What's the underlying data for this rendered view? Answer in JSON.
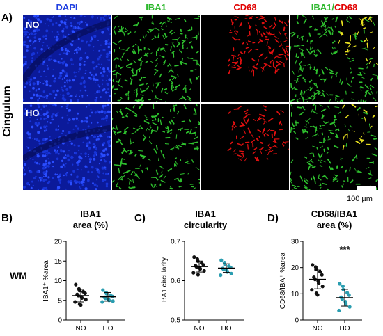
{
  "figure": {
    "panel_a": {
      "letter": "A)",
      "side_label": "Cingulum",
      "columns": [
        {
          "label": "DAPI",
          "color": "#1f3fe0"
        },
        {
          "label": "IBA1",
          "color": "#2db82d"
        },
        {
          "label": "CD68",
          "color": "#e00000"
        },
        {
          "label_part1": "IBA1",
          "label_sep": "/",
          "label_part2": "CD68",
          "color1": "#2db82d",
          "color2": "#e00000"
        }
      ],
      "rows": [
        {
          "label": "NO"
        },
        {
          "label": "HO"
        }
      ],
      "scale_bar": "100 µm"
    },
    "row_label_wm": "WM"
  },
  "chart_data": [
    {
      "type": "scatter",
      "letter": "B)",
      "title_line1": "IBA1",
      "title_line2": "area (%)",
      "ylabel": "IBA1⁺ %area",
      "categories": [
        "NO",
        "HO"
      ],
      "ylim": [
        0,
        20
      ],
      "yticks": [
        0,
        5,
        10,
        15,
        20
      ],
      "series": [
        {
          "group": "NO",
          "color": "#111111",
          "mean": 6.2,
          "sd": 1.6,
          "values": [
            9.0,
            7.9,
            7.5,
            7.2,
            6.8,
            6.5,
            6.2,
            5.9,
            5.6,
            5.2,
            4.6,
            4.0,
            3.8
          ]
        },
        {
          "group": "HO",
          "color": "#2a9db0",
          "mean": 5.9,
          "sd": 1.1,
          "values": [
            7.6,
            7.0,
            6.7,
            6.3,
            6.0,
            5.8,
            5.5,
            5.2,
            5.0,
            4.8,
            4.6
          ]
        }
      ]
    },
    {
      "type": "scatter",
      "letter": "C)",
      "title_line1": "IBA1",
      "title_line2": "circularity",
      "ylabel": "IBA1 circularity",
      "categories": [
        "NO",
        "HO"
      ],
      "ylim": [
        0.5,
        0.7
      ],
      "yticks": [
        0.5,
        0.6,
        0.7
      ],
      "ytick_labels": [
        "0.5",
        "0.6",
        "0.7"
      ],
      "series": [
        {
          "group": "NO",
          "color": "#111111",
          "mean": 0.636,
          "sd": 0.014,
          "values": [
            0.66,
            0.655,
            0.65,
            0.645,
            0.64,
            0.638,
            0.635,
            0.632,
            0.63,
            0.625,
            0.62,
            0.615
          ]
        },
        {
          "group": "HO",
          "color": "#2a9db0",
          "mean": 0.632,
          "sd": 0.011,
          "values": [
            0.652,
            0.646,
            0.641,
            0.637,
            0.634,
            0.631,
            0.628,
            0.625,
            0.622,
            0.618,
            0.614
          ]
        }
      ]
    },
    {
      "type": "scatter",
      "letter": "D)",
      "title_line1": "CD68/IBA1",
      "title_line2": "area (%)",
      "ylabel": "CD68/IBA⁺ %area",
      "categories": [
        "NO",
        "HO"
      ],
      "ylim": [
        0,
        30
      ],
      "yticks": [
        0,
        10,
        20,
        30
      ],
      "significance": "***",
      "series": [
        {
          "group": "NO",
          "color": "#111111",
          "mean": 15.5,
          "sd": 3.6,
          "values": [
            21.0,
            20.2,
            19.5,
            18.4,
            17.2,
            16.3,
            15.5,
            14.8,
            14.0,
            12.8,
            11.5,
            10.2,
            9.6
          ]
        },
        {
          "group": "HO",
          "color": "#2a9db0",
          "mean": 8.5,
          "sd": 3.2,
          "values": [
            13.8,
            12.9,
            11.6,
            10.4,
            9.5,
            8.7,
            7.9,
            7.0,
            6.1,
            5.0,
            3.6
          ]
        }
      ]
    }
  ]
}
